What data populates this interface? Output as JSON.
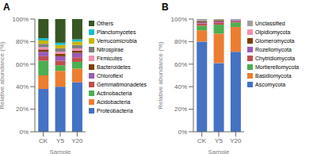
{
  "chart_data": [
    {
      "type": "bar",
      "stacked": true,
      "title": "A",
      "xlabel": "Sample",
      "ylabel": "Relative abundance (%)",
      "categories": [
        "CK",
        "Y5",
        "Y20"
      ],
      "series": [
        {
          "name": "Proteobacteria",
          "color": "#4472C4",
          "values": [
            38,
            40,
            44
          ]
        },
        {
          "name": "Acidobacteria",
          "color": "#ED7D31",
          "values": [
            12,
            14,
            12
          ]
        },
        {
          "name": "Actinobacteria",
          "color": "#4CAF50",
          "values": [
            13,
            5,
            6
          ]
        },
        {
          "name": "Gemmatimonadetes",
          "color": "#C0504D",
          "values": [
            4,
            4,
            4
          ]
        },
        {
          "name": "Chloroflexi",
          "color": "#9B59B6",
          "values": [
            4,
            4,
            4
          ]
        },
        {
          "name": "Bacteroidetes",
          "color": "#7B3F00",
          "values": [
            2,
            2,
            2
          ]
        },
        {
          "name": "Firmicutes",
          "color": "#F48FB1",
          "values": [
            2,
            2,
            2
          ]
        },
        {
          "name": "Nitrospirae",
          "color": "#7F7F7F",
          "values": [
            3,
            3,
            3
          ]
        },
        {
          "name": "Verrucomicrobia",
          "color": "#C9B605",
          "values": [
            3,
            3,
            3
          ]
        },
        {
          "name": "Planctomycetes",
          "color": "#17BECF",
          "values": [
            2,
            2,
            2
          ]
        },
        {
          "name": "Others",
          "color": "#375623",
          "values": [
            17,
            21,
            18
          ]
        }
      ],
      "ylim": [
        0,
        100
      ],
      "yticks": [
        {
          "value": 0,
          "label": "0%"
        },
        {
          "value": 20,
          "label": "20%"
        },
        {
          "value": 40,
          "label": "40%"
        },
        {
          "value": 60,
          "label": "60%"
        },
        {
          "value": 80,
          "label": "80%"
        },
        {
          "value": 100,
          "label": "100%"
        }
      ],
      "grid": false,
      "legend": "right"
    },
    {
      "type": "bar",
      "stacked": true,
      "title": "B",
      "xlabel": "Sample",
      "ylabel": "Relative abundance (%)",
      "categories": [
        "CK",
        "Y5",
        "Y20"
      ],
      "series": [
        {
          "name": "Ascomycota",
          "color": "#4472C4",
          "values": [
            80,
            61,
            71
          ]
        },
        {
          "name": "Basidiomycota",
          "color": "#ED7D31",
          "values": [
            10,
            26,
            22
          ]
        },
        {
          "name": "Mortierellomycota",
          "color": "#4CAF50",
          "values": [
            4,
            8,
            4
          ]
        },
        {
          "name": "Chytridiomycota",
          "color": "#C0504D",
          "values": [
            2,
            2,
            1
          ]
        },
        {
          "name": "Rozellomycota",
          "color": "#9B59B6",
          "values": [
            1,
            1,
            1
          ]
        },
        {
          "name": "Glomeromycota",
          "color": "#7B3F00",
          "values": [
            1,
            1,
            0
          ]
        },
        {
          "name": "Olpidiomycota",
          "color": "#F48FB1",
          "values": [
            0,
            0,
            0
          ]
        },
        {
          "name": "Unclassified",
          "color": "#A0A0A0",
          "values": [
            2,
            1,
            1
          ]
        }
      ],
      "ylim": [
        0,
        100
      ],
      "yticks": [
        {
          "value": 0,
          "label": "0%"
        },
        {
          "value": 20,
          "label": "20%"
        },
        {
          "value": 40,
          "label": "40%"
        },
        {
          "value": 60,
          "label": "60%"
        },
        {
          "value": 80,
          "label": "80%"
        },
        {
          "value": 100,
          "label": "100%"
        }
      ],
      "grid": false,
      "legend": "right"
    }
  ]
}
